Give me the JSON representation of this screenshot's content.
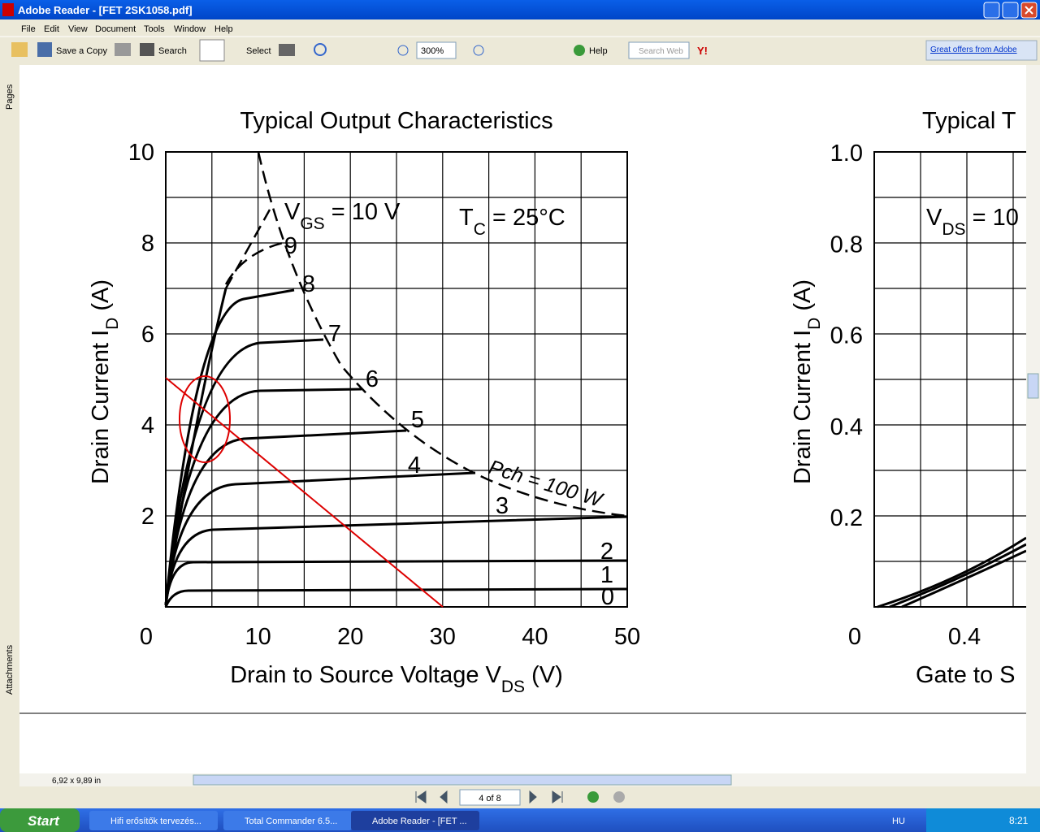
{
  "window": {
    "title": "Adobe Reader - [FET 2SK1058.pdf]"
  },
  "menu": [
    "File",
    "Edit",
    "View",
    "Document",
    "Tools",
    "Window",
    "Help"
  ],
  "toolbar": {
    "save_copy": "Save a Copy",
    "search": "Search",
    "select": "Select",
    "zoom": "300%",
    "help": "Help",
    "search_web": "Search Web",
    "offers": "Great offers from Adobe"
  },
  "side_tabs": [
    "Pages",
    "Attachments"
  ],
  "document": {
    "chart1": {
      "title": "Typical Output Characteristics",
      "y_label": [
        "Drain Current  I",
        "D",
        "  (A)"
      ],
      "x_label": [
        "Drain to Source Voltage  V",
        "DS",
        "  (V)"
      ],
      "yticks": [
        "10",
        "8",
        "6",
        "4",
        "2"
      ],
      "xticks": [
        "0",
        "10",
        "20",
        "30",
        "40",
        "50"
      ],
      "vgs": [
        "V",
        "GS",
        " = 10 V"
      ],
      "tc": [
        "T",
        "C",
        " = 25°C"
      ],
      "curve_labels": [
        "9",
        "8",
        "7",
        "6",
        "5",
        "4",
        "3",
        "2",
        "1",
        "0"
      ],
      "pch": "Pch = 100 W"
    },
    "chart2": {
      "title": "Typical T",
      "y_label": [
        "Drain Current  I",
        "D",
        "  (A)"
      ],
      "yticks": [
        "1.0",
        "0.8",
        "0.6",
        "0.4",
        "0.2"
      ],
      "xticks": [
        "0",
        "0.4"
      ],
      "vds": [
        "V",
        "DS",
        " = 10"
      ],
      "x_label": "Gate to S"
    }
  },
  "status": {
    "size": "6,92 x 9,89 in",
    "page": "4 of 8"
  },
  "taskbar": {
    "start": "Start",
    "tasks": [
      "Hifi erősítők tervezés...",
      "Total Commander 6.5...",
      "Adobe Reader - [FET ..."
    ],
    "lang": "HU",
    "time": "8:21"
  }
}
